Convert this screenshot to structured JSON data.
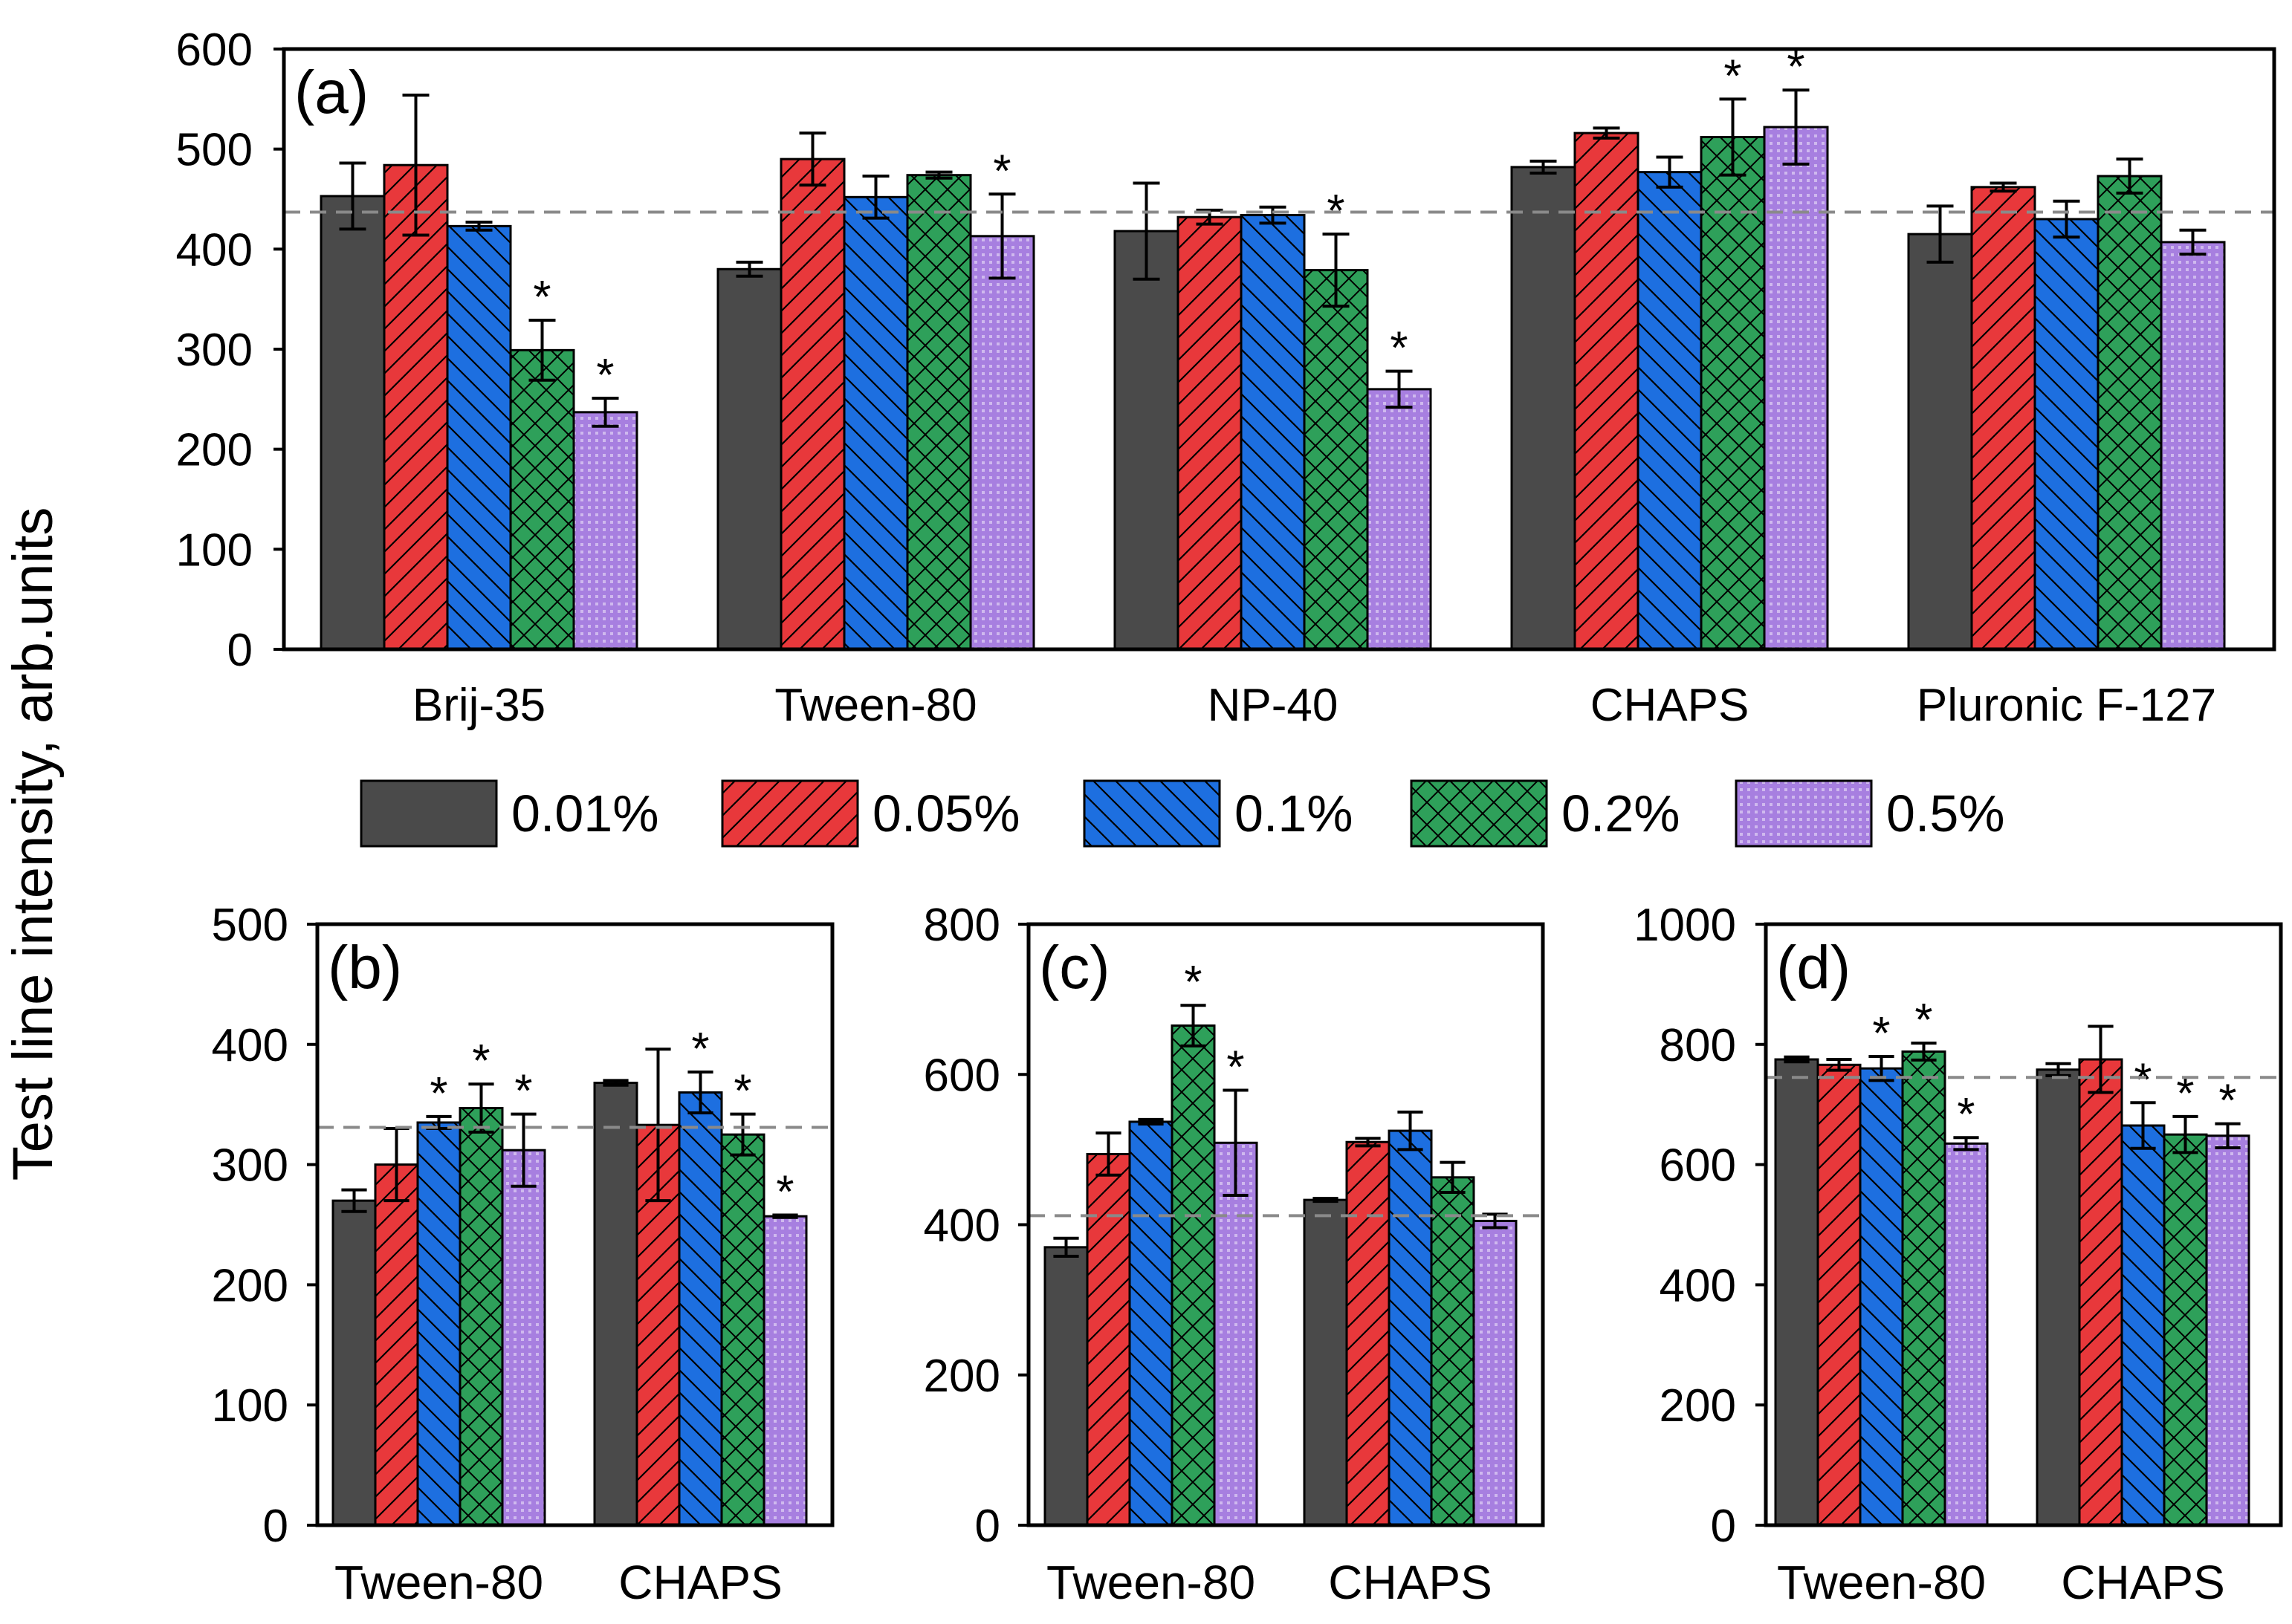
{
  "figure": {
    "ylabel": "Test line intensity, arb.units"
  },
  "legend": [
    {
      "label": "0.01%",
      "color": "#4a4a4a",
      "pattern": "solid"
    },
    {
      "label": "0.05%",
      "color": "#e8383b",
      "pattern": "diag-right"
    },
    {
      "label": "0.1%",
      "color": "#1d6fe0",
      "pattern": "diag-left"
    },
    {
      "label": "0.2%",
      "color": "#2ea05a",
      "pattern": "crosshatch"
    },
    {
      "label": "0.5%",
      "color": "#a77fe0",
      "pattern": "dots"
    }
  ],
  "significance_marker": "*",
  "chart_data": [
    {
      "id": "a",
      "type": "bar",
      "panel_label": "(a)",
      "categories": [
        "Brij-35",
        "Tween-80",
        "NP-40",
        "CHAPS",
        "Pluronic F-127"
      ],
      "ylim": [
        0,
        600
      ],
      "yticks": [
        "0",
        "100",
        "200",
        "300",
        "400",
        "500",
        "600"
      ],
      "yticks_values": [
        0,
        100,
        200,
        300,
        400,
        500,
        600
      ],
      "reference_line": 437,
      "series": [
        {
          "name": "0.01%",
          "values": [
            453,
            380,
            418,
            482,
            415
          ],
          "errors": [
            33,
            7,
            48,
            6,
            28
          ],
          "significant": [
            false,
            false,
            false,
            false,
            false
          ]
        },
        {
          "name": "0.05%",
          "values": [
            484,
            490,
            432,
            516,
            462
          ],
          "errors": [
            70,
            26,
            7,
            5,
            4
          ],
          "significant": [
            false,
            false,
            false,
            false,
            false
          ]
        },
        {
          "name": "0.1%",
          "values": [
            423,
            452,
            434,
            477,
            430
          ],
          "errors": [
            4,
            21,
            8,
            15,
            18
          ],
          "significant": [
            false,
            false,
            false,
            false,
            false
          ]
        },
        {
          "name": "0.2%",
          "values": [
            299,
            474,
            379,
            512,
            473
          ],
          "errors": [
            30,
            3,
            36,
            38,
            17
          ],
          "significant": [
            true,
            false,
            true,
            true,
            false
          ]
        },
        {
          "name": "0.5%",
          "values": [
            237,
            413,
            260,
            522,
            407
          ],
          "errors": [
            14,
            42,
            18,
            37,
            12
          ],
          "significant": [
            true,
            true,
            true,
            true,
            false
          ]
        }
      ]
    },
    {
      "id": "b",
      "type": "bar",
      "panel_label": "(b)",
      "categories": [
        "Tween-80",
        "CHAPS"
      ],
      "ylim": [
        0,
        500
      ],
      "yticks": [
        "0",
        "100",
        "200",
        "300",
        "400",
        "500"
      ],
      "yticks_values": [
        0,
        100,
        200,
        300,
        400,
        500
      ],
      "reference_line": 331,
      "series": [
        {
          "name": "0.01%",
          "values": [
            270,
            368
          ],
          "errors": [
            9,
            2
          ],
          "significant": [
            false,
            false
          ]
        },
        {
          "name": "0.05%",
          "values": [
            300,
            333
          ],
          "errors": [
            30,
            63
          ],
          "significant": [
            false,
            false
          ]
        },
        {
          "name": "0.1%",
          "values": [
            335,
            360
          ],
          "errors": [
            5,
            17
          ],
          "significant": [
            true,
            true
          ]
        },
        {
          "name": "0.2%",
          "values": [
            347,
            325
          ],
          "errors": [
            20,
            17
          ],
          "significant": [
            true,
            true
          ]
        },
        {
          "name": "0.5%",
          "values": [
            312,
            257
          ],
          "errors": [
            30,
            1
          ],
          "significant": [
            true,
            true
          ]
        }
      ]
    },
    {
      "id": "c",
      "type": "bar",
      "panel_label": "(c)",
      "categories": [
        "Tween-80",
        "CHAPS"
      ],
      "ylim": [
        0,
        800
      ],
      "yticks": [
        "0",
        "200",
        "400",
        "600",
        "800"
      ],
      "yticks_values": [
        0,
        200,
        400,
        600,
        800
      ],
      "reference_line": 412,
      "series": [
        {
          "name": "0.01%",
          "values": [
            370,
            433
          ],
          "errors": [
            12,
            2
          ],
          "significant": [
            false,
            false
          ]
        },
        {
          "name": "0.05%",
          "values": [
            494,
            510
          ],
          "errors": [
            28,
            5
          ],
          "significant": [
            false,
            false
          ]
        },
        {
          "name": "0.1%",
          "values": [
            537,
            525
          ],
          "errors": [
            3,
            25
          ],
          "significant": [
            false,
            false
          ]
        },
        {
          "name": "0.2%",
          "values": [
            665,
            463
          ],
          "errors": [
            27,
            20
          ],
          "significant": [
            true,
            false
          ]
        },
        {
          "name": "0.5%",
          "values": [
            509,
            405
          ],
          "errors": [
            70,
            9
          ],
          "significant": [
            true,
            false
          ]
        }
      ]
    },
    {
      "id": "d",
      "type": "bar",
      "panel_label": "(d)",
      "categories": [
        "Tween-80",
        "CHAPS"
      ],
      "ylim": [
        0,
        1000
      ],
      "yticks": [
        "0",
        "200",
        "400",
        "600",
        "800",
        "1000"
      ],
      "yticks_values": [
        0,
        200,
        400,
        600,
        800,
        1000
      ],
      "reference_line": 745,
      "series": [
        {
          "name": "0.01%",
          "values": [
            775,
            758
          ],
          "errors": [
            4,
            10
          ],
          "significant": [
            false,
            false
          ]
        },
        {
          "name": "0.05%",
          "values": [
            766,
            775
          ],
          "errors": [
            9,
            55
          ],
          "significant": [
            false,
            false
          ]
        },
        {
          "name": "0.1%",
          "values": [
            760,
            665
          ],
          "errors": [
            20,
            38
          ],
          "significant": [
            true,
            true
          ]
        },
        {
          "name": "0.2%",
          "values": [
            788,
            650
          ],
          "errors": [
            14,
            30
          ],
          "significant": [
            true,
            true
          ]
        },
        {
          "name": "0.5%",
          "values": [
            635,
            648
          ],
          "errors": [
            10,
            20
          ],
          "significant": [
            true,
            true
          ]
        }
      ]
    }
  ]
}
